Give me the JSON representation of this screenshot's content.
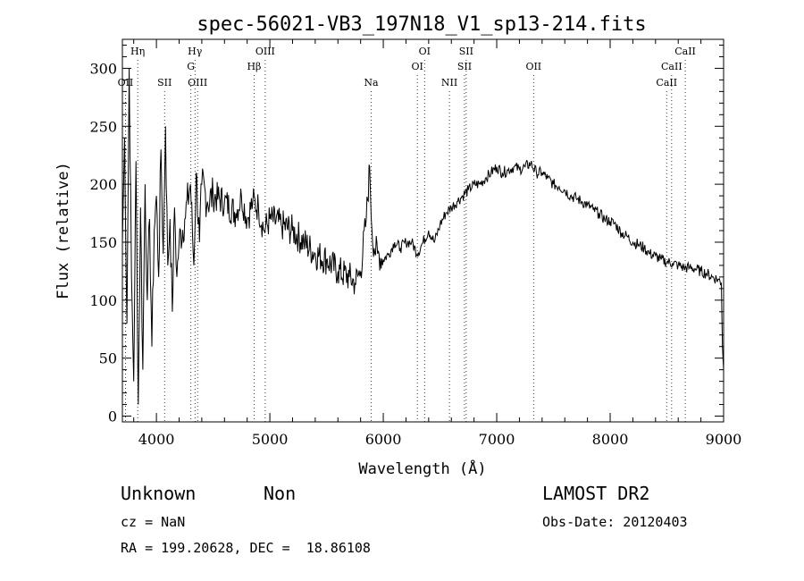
{
  "chart_data": {
    "type": "line",
    "title": "spec-56021-VB3_197N18_V1_sp13-214.fits",
    "xlabel": "Wavelength (Å)",
    "ylabel": "Flux (relative)",
    "xlim": [
      3700,
      9000
    ],
    "ylim": [
      -5,
      325
    ],
    "x_ticks": [
      4000,
      5000,
      6000,
      7000,
      8000,
      9000
    ],
    "y_ticks": [
      0,
      50,
      100,
      150,
      200,
      250,
      300
    ],
    "series": [
      {
        "name": "spectrum",
        "x": [
          3700,
          3720,
          3740,
          3760,
          3780,
          3800,
          3820,
          3840,
          3860,
          3880,
          3900,
          3920,
          3940,
          3960,
          3980,
          4000,
          4020,
          4040,
          4060,
          4080,
          4100,
          4120,
          4140,
          4160,
          4180,
          4200,
          4250,
          4300,
          4330,
          4350,
          4380,
          4400,
          4450,
          4500,
          4600,
          4700,
          4750,
          4800,
          4850,
          4900,
          4950,
          5000,
          5100,
          5200,
          5300,
          5400,
          5500,
          5600,
          5700,
          5750,
          5800,
          5850,
          5880,
          5900,
          5920,
          5950,
          6000,
          6050,
          6100,
          6150,
          6200,
          6250,
          6300,
          6350,
          6400,
          6450,
          6500,
          6550,
          6600,
          6650,
          6700,
          6750,
          6800,
          6850,
          6900,
          6950,
          7000,
          7050,
          7100,
          7150,
          7200,
          7250,
          7300,
          7350,
          7400,
          7450,
          7500,
          7550,
          7600,
          7650,
          7700,
          7750,
          7800,
          7850,
          7900,
          7950,
          8000,
          8050,
          8100,
          8150,
          8200,
          8250,
          8300,
          8350,
          8400,
          8450,
          8500,
          8550,
          8600,
          8650,
          8700,
          8750,
          8800,
          8850,
          8900,
          8950,
          8980,
          8990,
          9000
        ],
        "values": [
          150,
          240,
          80,
          300,
          120,
          30,
          220,
          10,
          180,
          40,
          200,
          100,
          170,
          60,
          160,
          190,
          120,
          230,
          140,
          250,
          130,
          170,
          90,
          180,
          120,
          150,
          170,
          200,
          130,
          210,
          150,
          200,
          185,
          190,
          185,
          175,
          190,
          170,
          185,
          180,
          160,
          170,
          165,
          160,
          150,
          140,
          135,
          125,
          120,
          115,
          125,
          170,
          215,
          160,
          145,
          140,
          135,
          140,
          150,
          145,
          150,
          150,
          140,
          150,
          160,
          150,
          165,
          175,
          180,
          185,
          190,
          195,
          200,
          200,
          205,
          210,
          215,
          210,
          212,
          215,
          213,
          215,
          218,
          210,
          210,
          205,
          200,
          198,
          195,
          190,
          188,
          185,
          182,
          178,
          175,
          170,
          168,
          165,
          158,
          155,
          150,
          148,
          145,
          140,
          138,
          135,
          133,
          132,
          130,
          128,
          128,
          127,
          125,
          123,
          120,
          118,
          115,
          60,
          40
        ]
      }
    ],
    "emission_lines": [
      {
        "label": "OII",
        "wavelength": 3727,
        "row": 3
      },
      {
        "label": "Hη",
        "wavelength": 3835,
        "row": 1
      },
      {
        "label": "SII",
        "wavelength": 4072,
        "row": 3
      },
      {
        "label": "Hγ",
        "wavelength": 4340,
        "row": 1
      },
      {
        "label": "G",
        "wavelength": 4304,
        "row": 2
      },
      {
        "label": "OIII",
        "wavelength": 4363,
        "row": 3
      },
      {
        "label": "OIII",
        "wavelength": 4959,
        "row": 1
      },
      {
        "label": "Hβ",
        "wavelength": 4861,
        "row": 2
      },
      {
        "label": "Na",
        "wavelength": 5893,
        "row": 3
      },
      {
        "label": "OI",
        "wavelength": 6364,
        "row": 1
      },
      {
        "label": "OI",
        "wavelength": 6300,
        "row": 2
      },
      {
        "label": "NII",
        "wavelength": 6583,
        "row": 3
      },
      {
        "label": "SII",
        "wavelength": 6731,
        "row": 1
      },
      {
        "label": "SII",
        "wavelength": 6716,
        "row": 2
      },
      {
        "label": "OII",
        "wavelength": 7325,
        "row": 2
      },
      {
        "label": "CaII",
        "wavelength": 8662,
        "row": 1
      },
      {
        "label": "CaII",
        "wavelength": 8542,
        "row": 2
      },
      {
        "label": "CaII",
        "wavelength": 8498,
        "row": 3
      }
    ]
  },
  "info": {
    "class": "Unknown",
    "subclass": "Non",
    "cz": "cz = NaN",
    "coords": "RA = 199.20628, DEC =  18.86108",
    "survey": "LAMOST DR2",
    "obs_date": "Obs-Date: 20120403"
  }
}
